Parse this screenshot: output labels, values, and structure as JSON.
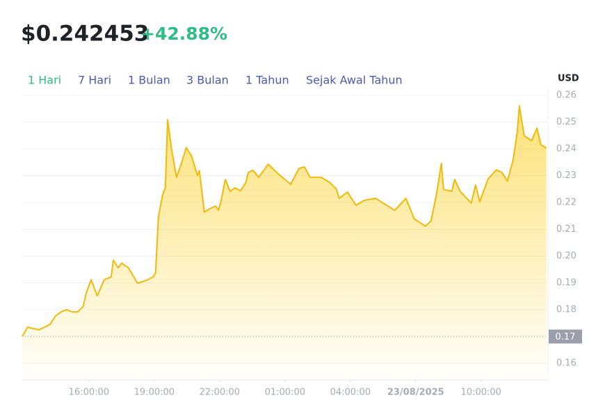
{
  "chart_data": {
    "type": "area",
    "price": "$0.242453",
    "change": "+42.88%",
    "ranges": [
      "1 Hari",
      "7 Hari",
      "1 Bulan",
      "3 Bulan",
      "1 Tahun",
      "Sejak Awal Tahun"
    ],
    "selected_range": 0,
    "currency": "USD",
    "reference": 0.17,
    "color": "#f0b90b",
    "grid": true,
    "xlim": [
      -3.06,
      21.04
    ],
    "xticks": [
      {
        "value": 0,
        "label": "16:00:00"
      },
      {
        "value": 3,
        "label": "19:00:00"
      },
      {
        "value": 6,
        "label": "22:00:00"
      },
      {
        "value": 9,
        "label": "01:00:00"
      },
      {
        "value": 12,
        "label": "04:00:00"
      },
      {
        "value": 15,
        "label": "23/08/2025"
      },
      {
        "value": 18,
        "label": "10:00:00"
      }
    ],
    "ylim": [
      0.1538,
      0.26
    ],
    "yticks": [
      0.16,
      0.18,
      0.19,
      {
        "value": 0.2,
        "label": "0.20"
      },
      0.21,
      0.22,
      0.23,
      0.24,
      0.25,
      0.26
    ],
    "x": [
      -3.06,
      -2.81,
      -2.55,
      -2.3,
      -2.04,
      -1.79,
      -1.53,
      -1.28,
      -1.02,
      -0.77,
      -0.51,
      -0.26,
      -0.13,
      0.1,
      0.38,
      0.7,
      1.02,
      1.12,
      1.34,
      1.5,
      1.82,
      2.23,
      2.62,
      2.94,
      3.06,
      3.19,
      3.38,
      3.51,
      3.61,
      3.8,
      4.02,
      4.21,
      4.47,
      4.72,
      4.98,
      5.07,
      5.3,
      5.55,
      5.81,
      5.94,
      6.06,
      6.26,
      6.48,
      6.7,
      6.96,
      7.21,
      7.31,
      7.53,
      7.79,
      8.23,
      8.62,
      9.0,
      9.26,
      9.64,
      9.89,
      10.15,
      10.66,
      11.04,
      11.36,
      11.49,
      11.87,
      12.26,
      12.64,
      13.15,
      13.53,
      14.04,
      14.55,
      14.94,
      15.45,
      15.7,
      15.96,
      16.18,
      16.28,
      16.66,
      16.79,
      17.04,
      17.55,
      17.75,
      17.94,
      18.32,
      18.7,
      18.96,
      19.21,
      19.47,
      19.66,
      19.76,
      19.98,
      20.33,
      20.56,
      20.75,
      21.0
    ],
    "values": [
      0.1701,
      0.1735,
      0.173,
      0.1725,
      0.1735,
      0.1745,
      0.1777,
      0.1792,
      0.18,
      0.1792,
      0.1792,
      0.1813,
      0.186,
      0.1912,
      0.1852,
      0.1912,
      0.1922,
      0.1985,
      0.1956,
      0.1974,
      0.1956,
      0.1899,
      0.1909,
      0.1922,
      0.1938,
      0.2146,
      0.2229,
      0.2255,
      0.2509,
      0.2397,
      0.2294,
      0.2338,
      0.2405,
      0.2372,
      0.2301,
      0.2319,
      0.2164,
      0.2177,
      0.2187,
      0.2171,
      0.2203,
      0.2286,
      0.2242,
      0.2255,
      0.2244,
      0.2276,
      0.2312,
      0.232,
      0.2294,
      0.2343,
      0.2312,
      0.2286,
      0.2268,
      0.2327,
      0.2333,
      0.2294,
      0.2294,
      0.2276,
      0.225,
      0.2216,
      0.2239,
      0.219,
      0.2208,
      0.2216,
      0.2197,
      0.2171,
      0.2216,
      0.2138,
      0.2112,
      0.213,
      0.2234,
      0.2346,
      0.2249,
      0.2242,
      0.2286,
      0.2242,
      0.2198,
      0.2265,
      0.2203,
      0.2288,
      0.2322,
      0.2312,
      0.228,
      0.2358,
      0.2462,
      0.2561,
      0.2449,
      0.2431,
      0.2478,
      0.2416,
      0.2403
    ]
  }
}
